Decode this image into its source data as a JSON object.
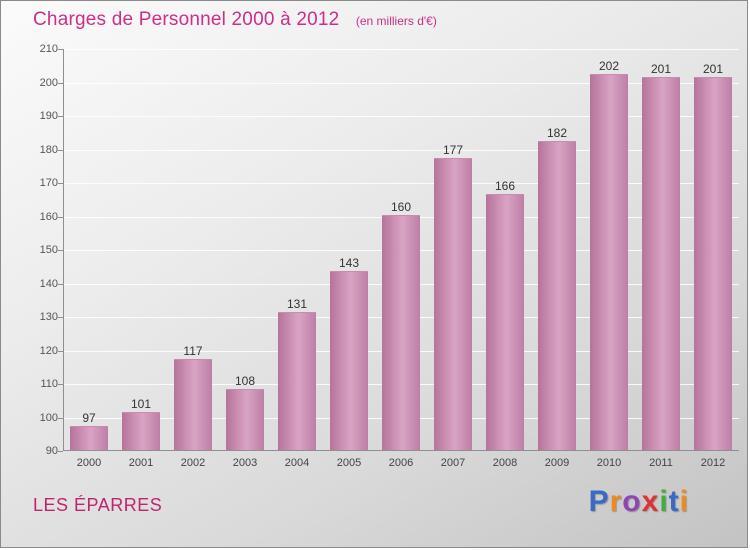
{
  "header": {
    "title": "Charges de Personnel 2000 à 2012",
    "subtitle": "(en milliers d'€)"
  },
  "footer": {
    "entity_name": "LES ÉPARRES"
  },
  "logo": {
    "name": "Proxiti",
    "letters": [
      {
        "ch": "P",
        "color": "#3a6bc4"
      },
      {
        "ch": "r",
        "color": "#f08a1e"
      },
      {
        "ch": "o",
        "color": "#8d46b4"
      },
      {
        "ch": "x",
        "color": "#e03232"
      },
      {
        "ch": "i",
        "color": "#3fae3f"
      },
      {
        "ch": "t",
        "color": "#3a6bc4"
      },
      {
        "ch": "i",
        "color": "#f08a1e"
      }
    ]
  },
  "colors": {
    "accent_magenta": "#cc2e8a",
    "bar_main": "#c98cb0",
    "axis": "#8f8f8f"
  },
  "chart_data": {
    "type": "bar",
    "title": "Charges de Personnel 2000 à 2012",
    "subtitle": "(en milliers d'€)",
    "categories": [
      "2000",
      "2001",
      "2002",
      "2003",
      "2004",
      "2005",
      "2006",
      "2007",
      "2008",
      "2009",
      "2010",
      "2011",
      "2012"
    ],
    "values": [
      97,
      101,
      117,
      108,
      131,
      143,
      160,
      177,
      166,
      182,
      202,
      201,
      201
    ],
    "xlabel": "",
    "ylabel": "",
    "ylim": [
      90,
      210
    ],
    "ytick_step": 10,
    "grid": true,
    "legend": "none"
  }
}
